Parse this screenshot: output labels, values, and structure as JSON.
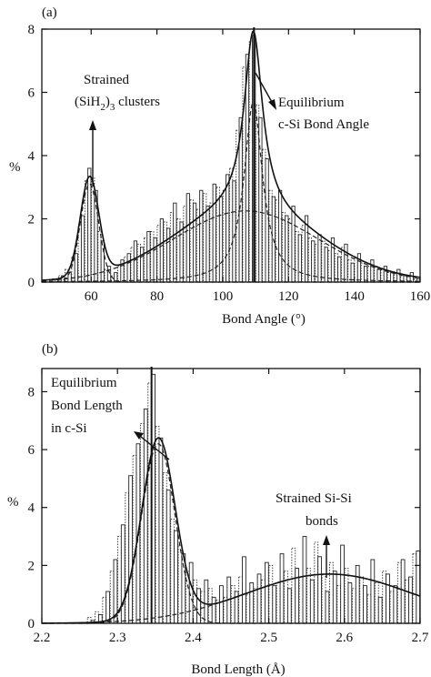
{
  "chart_data": [
    {
      "panel": "(a)",
      "type": "bar",
      "xlabel": "Bond Angle (°)",
      "ylabel": "%",
      "xlim": [
        45,
        160
      ],
      "ylim": [
        0,
        8
      ],
      "xticks": [
        60,
        80,
        100,
        120,
        140,
        160
      ],
      "yticks": [
        0,
        2,
        4,
        6,
        8
      ],
      "reference_line_x": 109.5,
      "bin_width": 2,
      "bins": {
        "x": [
          49,
          51,
          53,
          55,
          57,
          59,
          61,
          63,
          65,
          67,
          69,
          71,
          73,
          75,
          77,
          79,
          81,
          83,
          85,
          87,
          89,
          91,
          93,
          95,
          97,
          99,
          101,
          103,
          105,
          107,
          109,
          111,
          113,
          115,
          117,
          119,
          121,
          123,
          125,
          127,
          129,
          131,
          133,
          135,
          137,
          139,
          141,
          143,
          145,
          147,
          149,
          151,
          153,
          155,
          157,
          159
        ],
        "dotted": [
          0.1,
          0.2,
          0.4,
          0.8,
          1.8,
          3.2,
          3.3,
          1.6,
          0.4,
          0.2,
          0.5,
          0.8,
          1.1,
          1.2,
          1.4,
          1.6,
          1.8,
          1.9,
          2.2,
          2.0,
          2.4,
          2.6,
          2.3,
          2.8,
          2.5,
          3.0,
          2.9,
          3.6,
          4.8,
          6.8,
          7.6,
          5.6,
          4.2,
          2.9,
          2.6,
          2.2,
          2.0,
          1.6,
          1.8,
          1.4,
          1.2,
          1.3,
          1.0,
          0.9,
          1.1,
          0.7,
          0.8,
          0.6,
          0.5,
          0.5,
          0.4,
          0.3,
          0.3,
          0.2,
          0.2,
          0.1
        ],
        "solid": [
          0.1,
          0.2,
          0.3,
          0.9,
          2.1,
          3.6,
          2.9,
          1.3,
          0.5,
          0.3,
          0.7,
          0.9,
          1.3,
          1.1,
          1.6,
          1.4,
          2.0,
          1.7,
          2.5,
          1.9,
          2.8,
          2.5,
          2.9,
          2.4,
          3.1,
          2.7,
          3.4,
          3.2,
          5.2,
          7.2,
          7.8,
          5.2,
          3.9,
          2.7,
          2.9,
          2.1,
          2.4,
          1.5,
          2.1,
          1.3,
          1.5,
          1.1,
          1.4,
          0.8,
          1.2,
          0.6,
          0.9,
          0.5,
          0.7,
          0.4,
          0.5,
          0.3,
          0.4,
          0.2,
          0.3,
          0.1
        ]
      },
      "components": [
        {
          "shape": "gaussian",
          "center": 59.5,
          "sigma": 2.8,
          "amplitude": 3.1
        },
        {
          "shape": "gaussian",
          "center": 107,
          "sigma": 22,
          "amplitude": 2.25
        },
        {
          "shape": "lorentzian",
          "center": 109.3,
          "hwhm": 3.4,
          "amplitude": 5.7
        }
      ],
      "annotations": [
        {
          "lines": [
            "Strained",
            "(SiH",
            "2",
            ")",
            "3",
            " clusters"
          ]
        },
        {
          "lines": [
            "Equilibrium",
            "c-Si Bond Angle"
          ]
        }
      ]
    },
    {
      "panel": "(b)",
      "type": "bar",
      "xlabel": "Bond Length (Å)",
      "ylabel": "%",
      "xlim": [
        2.2,
        2.7
      ],
      "ylim": [
        0,
        8.8
      ],
      "xticks": [
        2.2,
        2.3,
        2.4,
        2.5,
        2.6,
        2.7
      ],
      "yticks": [
        0,
        2,
        4,
        6,
        8
      ],
      "reference_line_x": 2.345,
      "bin_width": 0.01,
      "bins": {
        "x": [
          2.265,
          2.275,
          2.285,
          2.295,
          2.305,
          2.315,
          2.325,
          2.335,
          2.345,
          2.355,
          2.365,
          2.375,
          2.385,
          2.395,
          2.405,
          2.415,
          2.425,
          2.435,
          2.445,
          2.455,
          2.465,
          2.475,
          2.485,
          2.495,
          2.505,
          2.515,
          2.525,
          2.535,
          2.545,
          2.555,
          2.565,
          2.575,
          2.585,
          2.595,
          2.605,
          2.615,
          2.625,
          2.635,
          2.645,
          2.655,
          2.665,
          2.675,
          2.685,
          2.695
        ],
        "dotted": [
          0.2,
          0.4,
          0.9,
          1.8,
          3.0,
          4.5,
          5.8,
          6.9,
          8.3,
          6.8,
          5.2,
          3.6,
          2.7,
          1.8,
          1.5,
          1.1,
          1.2,
          0.8,
          0.9,
          1.3,
          1.6,
          1.0,
          1.2,
          1.5,
          2.0,
          1.4,
          1.8,
          2.6,
          1.6,
          1.9,
          2.8,
          1.7,
          2.1,
          1.3,
          1.9,
          1.2,
          1.6,
          1.0,
          1.4,
          1.8,
          1.1,
          2.1,
          1.5,
          2.4
        ],
        "solid": [
          0.1,
          0.3,
          1.1,
          2.2,
          3.4,
          5.1,
          6.2,
          7.4,
          8.6,
          6.4,
          4.6,
          3.2,
          2.4,
          2.1,
          1.2,
          1.5,
          0.9,
          1.3,
          1.6,
          1.1,
          2.3,
          1.4,
          1.7,
          2.1,
          1.3,
          2.4,
          1.2,
          1.9,
          3.0,
          1.5,
          2.3,
          1.1,
          1.8,
          2.7,
          1.4,
          2.0,
          1.3,
          2.2,
          0.9,
          1.7,
          1.3,
          2.2,
          1.6,
          2.5
        ]
      },
      "components": [
        {
          "shape": "gaussian",
          "center": 2.354,
          "sigma": 0.022,
          "amplitude": 6.2
        },
        {
          "shape": "gaussian",
          "center": 2.58,
          "sigma": 0.11,
          "amplitude": 1.7
        }
      ],
      "annotations": [
        {
          "lines": [
            "Equilibrium",
            "Bond Length",
            "in c-Si"
          ]
        },
        {
          "lines": [
            "Strained Si-Si",
            "bonds"
          ]
        }
      ]
    }
  ]
}
